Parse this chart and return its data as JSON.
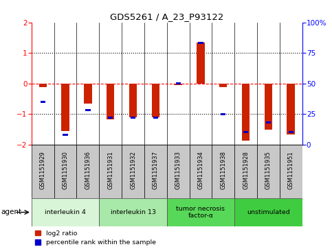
{
  "title": "GDS5261 / A_23_P93122",
  "samples": [
    "GSM1151929",
    "GSM1151930",
    "GSM1151936",
    "GSM1151931",
    "GSM1151932",
    "GSM1151937",
    "GSM1151933",
    "GSM1151934",
    "GSM1151938",
    "GSM1151928",
    "GSM1151935",
    "GSM1151951"
  ],
  "log2_ratio": [
    -0.12,
    -1.57,
    -0.65,
    -1.18,
    -1.12,
    -1.12,
    -0.05,
    1.35,
    -0.12,
    -1.88,
    -1.52,
    -1.68
  ],
  "percentile": [
    35,
    8,
    28,
    22,
    22,
    22,
    50,
    83,
    25,
    10,
    18,
    10
  ],
  "agents": [
    {
      "label": "interleukin 4",
      "start": 0,
      "end": 3,
      "color": "#d8f5d8"
    },
    {
      "label": "interleukin 13",
      "start": 3,
      "end": 6,
      "color": "#a8e8a8"
    },
    {
      "label": "tumor necrosis\nfactor-α",
      "start": 6,
      "end": 9,
      "color": "#58d858"
    },
    {
      "label": "unstimulated",
      "start": 9,
      "end": 12,
      "color": "#40cc40"
    }
  ],
  "bar_color_red": "#cc2200",
  "bar_color_blue": "#0000cc",
  "ylim_left": [
    -2,
    2
  ],
  "ylim_right": [
    0,
    100
  ],
  "yticks_left": [
    -2,
    -1,
    0,
    1,
    2
  ],
  "yticks_right": [
    0,
    25,
    50,
    75,
    100
  ],
  "ytick_labels_right": [
    "0",
    "25",
    "50",
    "75",
    "100%"
  ],
  "legend_red": "log2 ratio",
  "legend_blue": "percentile rank within the sample",
  "agent_label": "agent",
  "sample_box_color": "#c8c8c8"
}
